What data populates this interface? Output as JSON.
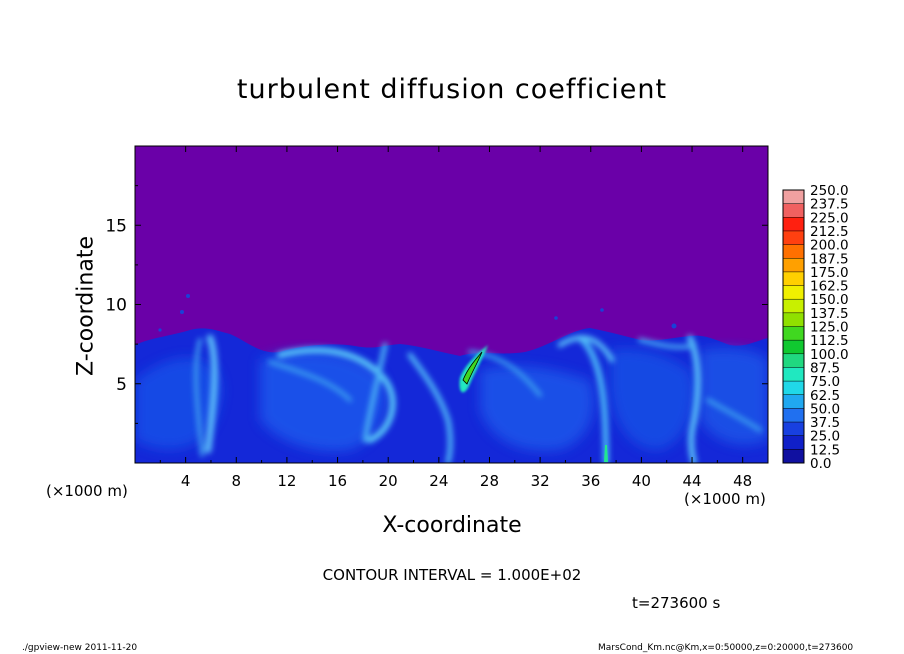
{
  "chart_data": {
    "type": "heatmap",
    "title": "turbulent diffusion coefficient",
    "xlabel": "X-coordinate",
    "ylabel": "Z-coordinate",
    "x_unit_left": "(×1000 m)",
    "x_unit_right": "(×1000 m)",
    "xlim": [
      0,
      50
    ],
    "ylim": [
      0,
      20
    ],
    "x_ticks": [
      "4",
      "8",
      "12",
      "16",
      "20",
      "24",
      "28",
      "32",
      "36",
      "40",
      "44",
      "48"
    ],
    "y_ticks": [
      "5",
      "10",
      "15"
    ],
    "colorbar_levels": [
      "250.0",
      "237.5",
      "225.0",
      "212.5",
      "200.0",
      "187.5",
      "175.0",
      "162.5",
      "150.0",
      "137.5",
      "125.0",
      "112.5",
      "100.0",
      "87.5",
      "75.0",
      "62.5",
      "50.0",
      "37.5",
      "25.0",
      "12.5",
      "0.0"
    ],
    "colorbar_colors": [
      "#f0a0a0",
      "#f06060",
      "#ff2010",
      "#ff4010",
      "#ff7000",
      "#ffa000",
      "#ffd000",
      "#f0f000",
      "#c8f000",
      "#90e000",
      "#40d820",
      "#10c830",
      "#20d880",
      "#20e8c0",
      "#20d8e8",
      "#20a8f0",
      "#2070f0",
      "#1840e0",
      "#1020c8",
      "#1010a0",
      "#6a00a8"
    ],
    "background_color": "#6a00a8",
    "grid": false,
    "contour_interval": "CONTOUR INTERVAL = 1.000E+02",
    "time_label": "t=273600 s"
  },
  "footer": {
    "left": "./gpview-new   2011-11-20",
    "right": "MarsCond_Km.nc@Km,x=0:50000,z=0:20000,t=273600"
  }
}
